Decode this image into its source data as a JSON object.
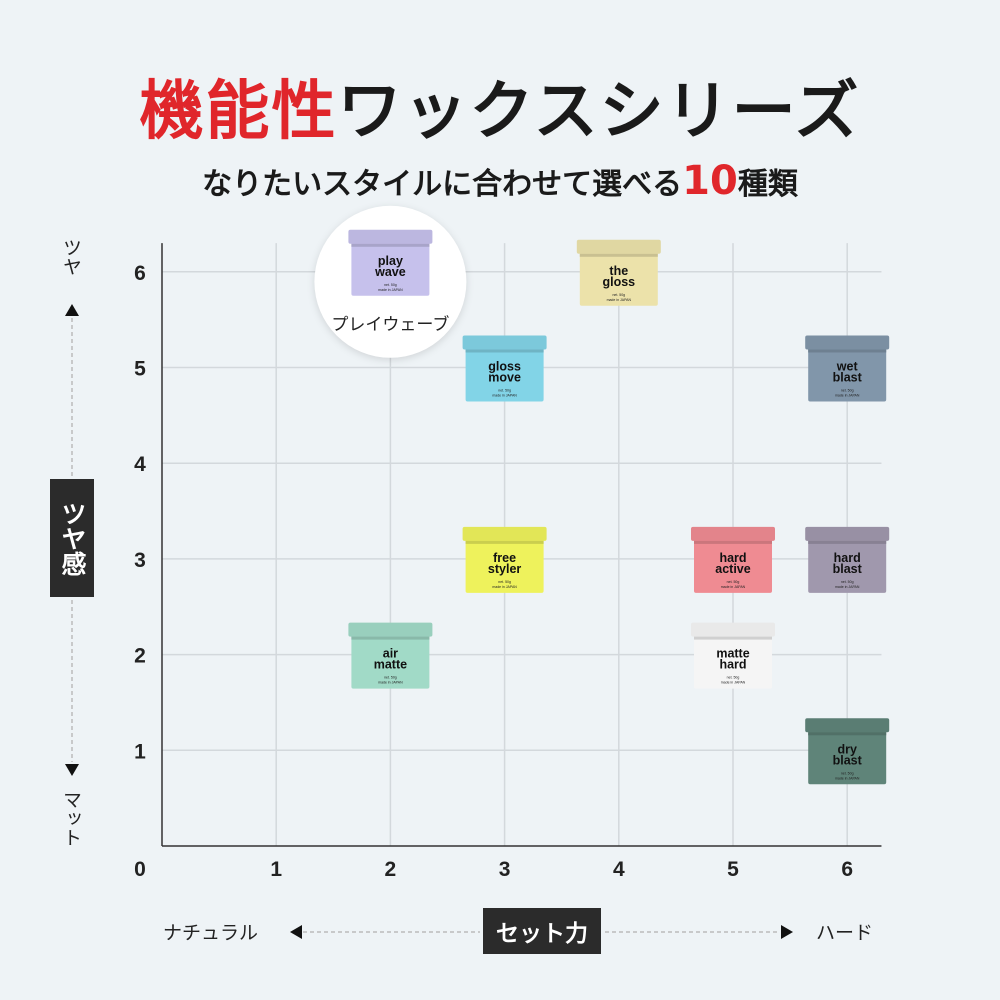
{
  "title": {
    "accent": "機能性",
    "rest": "ワックスシリーズ",
    "accent_color": "#e0262b"
  },
  "subtitle": {
    "pre": "なりたいスタイルに合わせて選べる",
    "number": "10",
    "post": "種類"
  },
  "chart_data": {
    "type": "scatter",
    "xlabel": "セット力",
    "ylabel": "ツヤ感",
    "x_low": "ナチュラル",
    "x_high": "ハード",
    "y_high": "ツヤ",
    "y_low": "マット",
    "xlim": [
      0,
      6.3
    ],
    "ylim": [
      0,
      6.3
    ],
    "xticks": [
      "0",
      "1",
      "2",
      "3",
      "4",
      "5",
      "6"
    ],
    "yticks": [
      "1",
      "2",
      "3",
      "4",
      "5",
      "6"
    ],
    "grid": true,
    "highlight_label": "プレイウェーブ",
    "points": [
      {
        "name": "play wave",
        "x": 2,
        "y": 6,
        "color": "#c6c1ec",
        "highlight": true
      },
      {
        "name": "the gloss",
        "x": 4,
        "y": 6,
        "color": "#ece2aa"
      },
      {
        "name": "gloss move",
        "x": 3,
        "y": 5,
        "color": "#82d4e7"
      },
      {
        "name": "wet blast",
        "x": 6,
        "y": 5,
        "color": "#8196aa"
      },
      {
        "name": "free styler",
        "x": 3,
        "y": 3,
        "color": "#eef25c"
      },
      {
        "name": "hard active",
        "x": 5,
        "y": 3,
        "color": "#ef8b92"
      },
      {
        "name": "hard blast",
        "x": 6,
        "y": 3,
        "color": "#a098ad"
      },
      {
        "name": "air matte",
        "x": 2,
        "y": 2,
        "color": "#a1dac7"
      },
      {
        "name": "matte hard",
        "x": 5,
        "y": 2,
        "color": "#f5f5f5"
      },
      {
        "name": "dry blast",
        "x": 6,
        "y": 1,
        "color": "#5f8479"
      }
    ],
    "jar_small_text": [
      "net. 50g",
      "made in JAPAN"
    ]
  }
}
